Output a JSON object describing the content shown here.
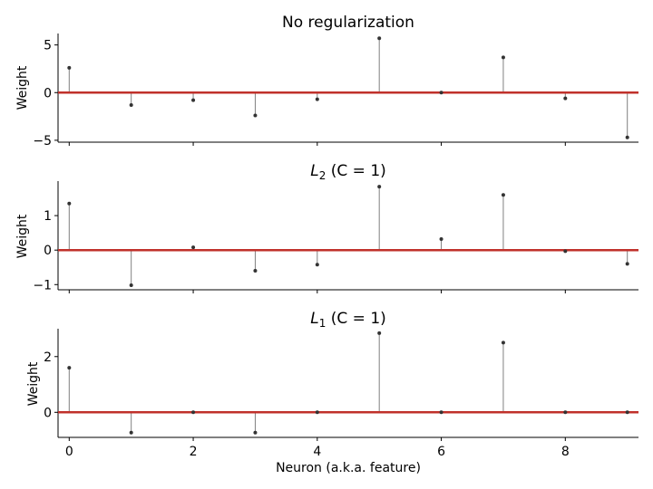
{
  "figure": {
    "xlabel": "Neuron (a.k.a. feature)"
  },
  "colors": {
    "stem": "#808080",
    "marker": "#333333",
    "baseline": "#c0312b",
    "axis": "#000000"
  },
  "chart_data": [
    {
      "type": "stem",
      "title": "No regularization",
      "ylabel": "Weight",
      "xlabel": "",
      "x": [
        0,
        1,
        2,
        3,
        4,
        5,
        6,
        7,
        8,
        9
      ],
      "values": [
        2.6,
        -1.3,
        -0.8,
        -2.4,
        -0.7,
        5.7,
        0.0,
        3.7,
        -0.6,
        -4.7
      ],
      "yticks": [
        -5,
        0,
        5
      ],
      "ytick_labels": [
        "−5",
        "0",
        "5"
      ],
      "xticks": [
        0,
        2,
        4,
        6,
        8
      ],
      "xtick_labels": [],
      "ylim": [
        -5.2,
        6.2
      ],
      "xlim": [
        -0.18,
        9.18
      ]
    },
    {
      "type": "stem",
      "title_main": "L",
      "title_sub": "2",
      "title_rest": " (C = 1)",
      "ylabel": "Weight",
      "xlabel": "",
      "x": [
        0,
        1,
        2,
        3,
        4,
        5,
        6,
        7,
        8,
        9
      ],
      "values": [
        1.35,
        -1.02,
        0.08,
        -0.6,
        -0.42,
        1.84,
        0.32,
        1.6,
        -0.03,
        -0.4
      ],
      "yticks": [
        -1,
        0,
        1
      ],
      "ytick_labels": [
        "−1",
        "0",
        "1"
      ],
      "xticks": [
        0,
        2,
        4,
        6,
        8
      ],
      "xtick_labels": [],
      "ylim": [
        -1.15,
        2.0
      ],
      "xlim": [
        -0.18,
        9.18
      ]
    },
    {
      "type": "stem",
      "title_main": "L",
      "title_sub": "1",
      "title_rest": " (C = 1)",
      "ylabel": "Weight",
      "xlabel": "Neuron (a.k.a. feature)",
      "x": [
        0,
        1,
        2,
        3,
        4,
        5,
        6,
        7,
        8,
        9
      ],
      "values": [
        1.6,
        -0.73,
        0.0,
        -0.73,
        0.0,
        2.84,
        0.0,
        2.5,
        0.0,
        0.0
      ],
      "yticks": [
        0,
        2
      ],
      "ytick_labels": [
        "0",
        "2"
      ],
      "xticks": [
        0,
        2,
        4,
        6,
        8
      ],
      "xtick_labels": [
        "0",
        "2",
        "4",
        "6",
        "8"
      ],
      "ylim": [
        -0.9,
        3.0
      ],
      "xlim": [
        -0.18,
        9.18
      ]
    }
  ]
}
